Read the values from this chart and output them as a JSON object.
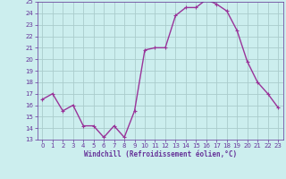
{
  "x": [
    0,
    1,
    2,
    3,
    4,
    5,
    6,
    7,
    8,
    9,
    10,
    11,
    12,
    13,
    14,
    15,
    16,
    17,
    18,
    19,
    20,
    21,
    22,
    23
  ],
  "y": [
    16.5,
    17.0,
    15.5,
    16.0,
    14.2,
    14.2,
    13.2,
    14.2,
    13.2,
    15.5,
    20.8,
    21.0,
    21.0,
    23.8,
    24.5,
    24.5,
    25.2,
    24.8,
    24.2,
    22.5,
    19.8,
    18.0,
    17.0,
    15.8
  ],
  "line_color": "#993399",
  "marker": "+",
  "marker_size": 3,
  "bg_color": "#cceeee",
  "grid_color": "#aacccc",
  "xlabel": "Windchill (Refroidissement éolien,°C)",
  "ylim": [
    13,
    25
  ],
  "xlim_min": -0.5,
  "xlim_max": 23.5,
  "yticks": [
    13,
    14,
    15,
    16,
    17,
    18,
    19,
    20,
    21,
    22,
    23,
    24,
    25
  ],
  "xticks": [
    0,
    1,
    2,
    3,
    4,
    5,
    6,
    7,
    8,
    9,
    10,
    11,
    12,
    13,
    14,
    15,
    16,
    17,
    18,
    19,
    20,
    21,
    22,
    23
  ],
  "label_color": "#663399",
  "tick_color": "#663399",
  "line_width": 1.0,
  "tick_fontsize": 5.0,
  "xlabel_fontsize": 5.5
}
